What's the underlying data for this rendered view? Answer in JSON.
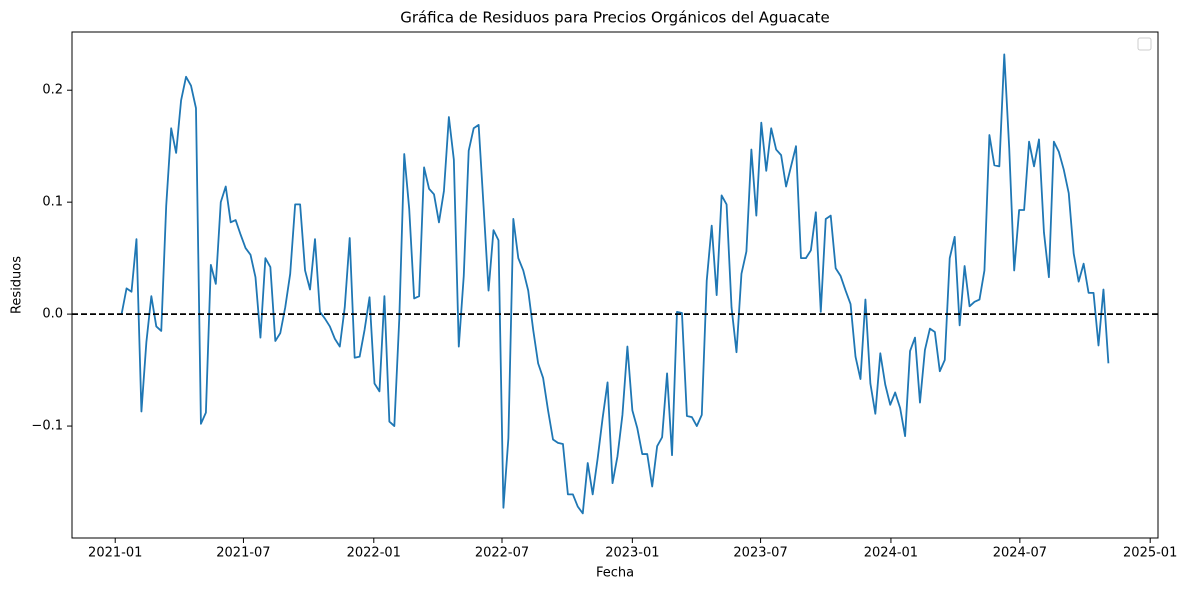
{
  "chart_data": {
    "type": "line",
    "title": "Gráfica de Residuos para Precios Orgánicos del Aguacate",
    "x_label": "Fecha",
    "y_label": "Residuos",
    "xlim": [
      "2020-11-01",
      "2025-01-12"
    ],
    "xticks": [
      {
        "value": "2021-01-01",
        "label": "2021-01"
      },
      {
        "value": "2021-07-01",
        "label": "2021-07"
      },
      {
        "value": "2022-01-01",
        "label": "2022-01"
      },
      {
        "value": "2022-07-01",
        "label": "2022-07"
      },
      {
        "value": "2023-01-01",
        "label": "2023-01"
      },
      {
        "value": "2023-07-01",
        "label": "2023-07"
      },
      {
        "value": "2024-01-01",
        "label": "2024-01"
      },
      {
        "value": "2024-07-01",
        "label": "2024-07"
      },
      {
        "value": "2025-01-01",
        "label": "2025-01"
      }
    ],
    "ylim": [
      -0.2,
      0.252
    ],
    "yticks": [
      {
        "value": -0.1,
        "label": "−0.1"
      },
      {
        "value": 0,
        "label": "0.0"
      },
      0.1,
      0.2
    ],
    "reference_line": {
      "value": 0,
      "style": "dashed",
      "color": "#000000"
    },
    "x": [
      "2021-01-10",
      "2021-01-17",
      "2021-01-24",
      "2021-01-31",
      "2021-02-07",
      "2021-02-14",
      "2021-02-21",
      "2021-02-28",
      "2021-03-07",
      "2021-03-14",
      "2021-03-21",
      "2021-03-28",
      "2021-04-04",
      "2021-04-11",
      "2021-04-18",
      "2021-04-25",
      "2021-05-02",
      "2021-05-09",
      "2021-05-16",
      "2021-05-23",
      "2021-05-30",
      "2021-06-06",
      "2021-06-13",
      "2021-06-20",
      "2021-06-27",
      "2021-07-04",
      "2021-07-11",
      "2021-07-18",
      "2021-07-25",
      "2021-08-01",
      "2021-08-08",
      "2021-08-15",
      "2021-08-22",
      "2021-08-29",
      "2021-09-05",
      "2021-09-12",
      "2021-09-19",
      "2021-09-26",
      "2021-10-03",
      "2021-10-10",
      "2021-10-17",
      "2021-10-24",
      "2021-10-31",
      "2021-11-07",
      "2021-11-14",
      "2021-11-21",
      "2021-11-28",
      "2021-12-05",
      "2021-12-12",
      "2021-12-19",
      "2021-12-26",
      "2022-01-02",
      "2022-01-09",
      "2022-01-16",
      "2022-01-23",
      "2022-01-30",
      "2022-02-06",
      "2022-02-13",
      "2022-02-20",
      "2022-02-27",
      "2022-03-06",
      "2022-03-13",
      "2022-03-20",
      "2022-03-27",
      "2022-04-03",
      "2022-04-10",
      "2022-04-17",
      "2022-04-24",
      "2022-05-01",
      "2022-05-08",
      "2022-05-15",
      "2022-05-22",
      "2022-05-29",
      "2022-06-05",
      "2022-06-12",
      "2022-06-19",
      "2022-06-26",
      "2022-07-03",
      "2022-07-10",
      "2022-07-17",
      "2022-07-24",
      "2022-07-31",
      "2022-08-07",
      "2022-08-14",
      "2022-08-21",
      "2022-08-28",
      "2022-09-04",
      "2022-09-11",
      "2022-09-18",
      "2022-09-25",
      "2022-10-02",
      "2022-10-09",
      "2022-10-16",
      "2022-10-23",
      "2022-10-30",
      "2022-11-06",
      "2022-11-13",
      "2022-11-20",
      "2022-11-27",
      "2022-12-04",
      "2022-12-11",
      "2022-12-18",
      "2022-12-25",
      "2023-01-01",
      "2023-01-08",
      "2023-01-15",
      "2023-01-22",
      "2023-01-29",
      "2023-02-05",
      "2023-02-12",
      "2023-02-19",
      "2023-02-26",
      "2023-03-05",
      "2023-03-12",
      "2023-03-19",
      "2023-03-26",
      "2023-04-02",
      "2023-04-09",
      "2023-04-16",
      "2023-04-23",
      "2023-04-30",
      "2023-05-07",
      "2023-05-14",
      "2023-05-21",
      "2023-05-28",
      "2023-06-04",
      "2023-06-11",
      "2023-06-18",
      "2023-06-25",
      "2023-07-02",
      "2023-07-09",
      "2023-07-16",
      "2023-07-23",
      "2023-07-30",
      "2023-08-06",
      "2023-08-13",
      "2023-08-20",
      "2023-08-27",
      "2023-09-03",
      "2023-09-10",
      "2023-09-17",
      "2023-09-24",
      "2023-10-01",
      "2023-10-08",
      "2023-10-15",
      "2023-10-22",
      "2023-10-29",
      "2023-11-05",
      "2023-11-12",
      "2023-11-19",
      "2023-11-26",
      "2023-12-03",
      "2023-12-10",
      "2023-12-17",
      "2023-12-24",
      "2023-12-31",
      "2024-01-07",
      "2024-01-14",
      "2024-01-21",
      "2024-01-28",
      "2024-02-04",
      "2024-02-11",
      "2024-02-18",
      "2024-02-25",
      "2024-03-03",
      "2024-03-10",
      "2024-03-17",
      "2024-03-24",
      "2024-03-31",
      "2024-04-07",
      "2024-04-14",
      "2024-04-21",
      "2024-04-28",
      "2024-05-05",
      "2024-05-12",
      "2024-05-19",
      "2024-05-26",
      "2024-06-02",
      "2024-06-09",
      "2024-06-16",
      "2024-06-23",
      "2024-06-30",
      "2024-07-07",
      "2024-07-14",
      "2024-07-21",
      "2024-07-28",
      "2024-08-04",
      "2024-08-11",
      "2024-08-18",
      "2024-08-25",
      "2024-09-01",
      "2024-09-08",
      "2024-09-15",
      "2024-09-22",
      "2024-09-29",
      "2024-10-06",
      "2024-10-13",
      "2024-10-20",
      "2024-10-27",
      "2024-11-03"
    ],
    "series": [
      {
        "color": "#1f77b4",
        "values": [
          0.0,
          0.023,
          0.02,
          0.067,
          -0.087,
          -0.025,
          0.016,
          -0.011,
          -0.015,
          0.097,
          0.166,
          0.144,
          0.191,
          0.212,
          0.204,
          0.184,
          -0.098,
          -0.088,
          0.044,
          0.027,
          0.1,
          0.114,
          0.082,
          0.084,
          0.071,
          0.059,
          0.053,
          0.033,
          -0.021,
          0.05,
          0.042,
          -0.024,
          -0.017,
          0.006,
          0.036,
          0.098,
          0.098,
          0.039,
          0.022,
          0.067,
          0.002,
          -0.004,
          -0.011,
          -0.022,
          -0.029,
          0.006,
          0.068,
          -0.039,
          -0.038,
          -0.014,
          0.015,
          -0.062,
          -0.069,
          0.016,
          -0.096,
          -0.1,
          -0.004,
          0.143,
          0.094,
          0.014,
          0.016,
          0.131,
          0.112,
          0.107,
          0.082,
          0.11,
          0.176,
          0.138,
          -0.029,
          0.034,
          0.146,
          0.166,
          0.169,
          0.096,
          0.021,
          0.075,
          0.066,
          -0.173,
          -0.111,
          0.085,
          0.05,
          0.039,
          0.021,
          -0.014,
          -0.044,
          -0.057,
          -0.086,
          -0.112,
          -0.115,
          -0.116,
          -0.161,
          -0.161,
          -0.172,
          -0.178,
          -0.133,
          -0.161,
          -0.129,
          -0.093,
          -0.061,
          -0.151,
          -0.127,
          -0.09,
          -0.029,
          -0.086,
          -0.102,
          -0.125,
          -0.125,
          -0.154,
          -0.118,
          -0.11,
          -0.053,
          -0.126,
          0.002,
          0.001,
          -0.091,
          -0.092,
          -0.1,
          -0.09,
          0.03,
          0.079,
          0.017,
          0.106,
          0.098,
          0.006,
          -0.034,
          0.036,
          0.056,
          0.147,
          0.088,
          0.171,
          0.128,
          0.166,
          0.147,
          0.142,
          0.114,
          0.132,
          0.15,
          0.05,
          0.05,
          0.057,
          0.091,
          0.002,
          0.085,
          0.088,
          0.041,
          0.034,
          0.021,
          0.009,
          -0.038,
          -0.058,
          0.013,
          -0.062,
          -0.089,
          -0.035,
          -0.063,
          -0.081,
          -0.07,
          -0.084,
          -0.109,
          -0.033,
          -0.021,
          -0.079,
          -0.032,
          -0.013,
          -0.016,
          -0.051,
          -0.041,
          0.05,
          0.069,
          -0.01,
          0.043,
          0.007,
          0.011,
          0.013,
          0.039,
          0.16,
          0.133,
          0.132,
          0.232,
          0.148,
          0.039,
          0.093,
          0.093,
          0.154,
          0.132,
          0.156,
          0.073,
          0.033,
          0.154,
          0.145,
          0.129,
          0.108,
          0.054,
          0.029,
          0.045,
          0.019,
          0.019,
          -0.028,
          0.022,
          -0.044
        ]
      }
    ]
  }
}
